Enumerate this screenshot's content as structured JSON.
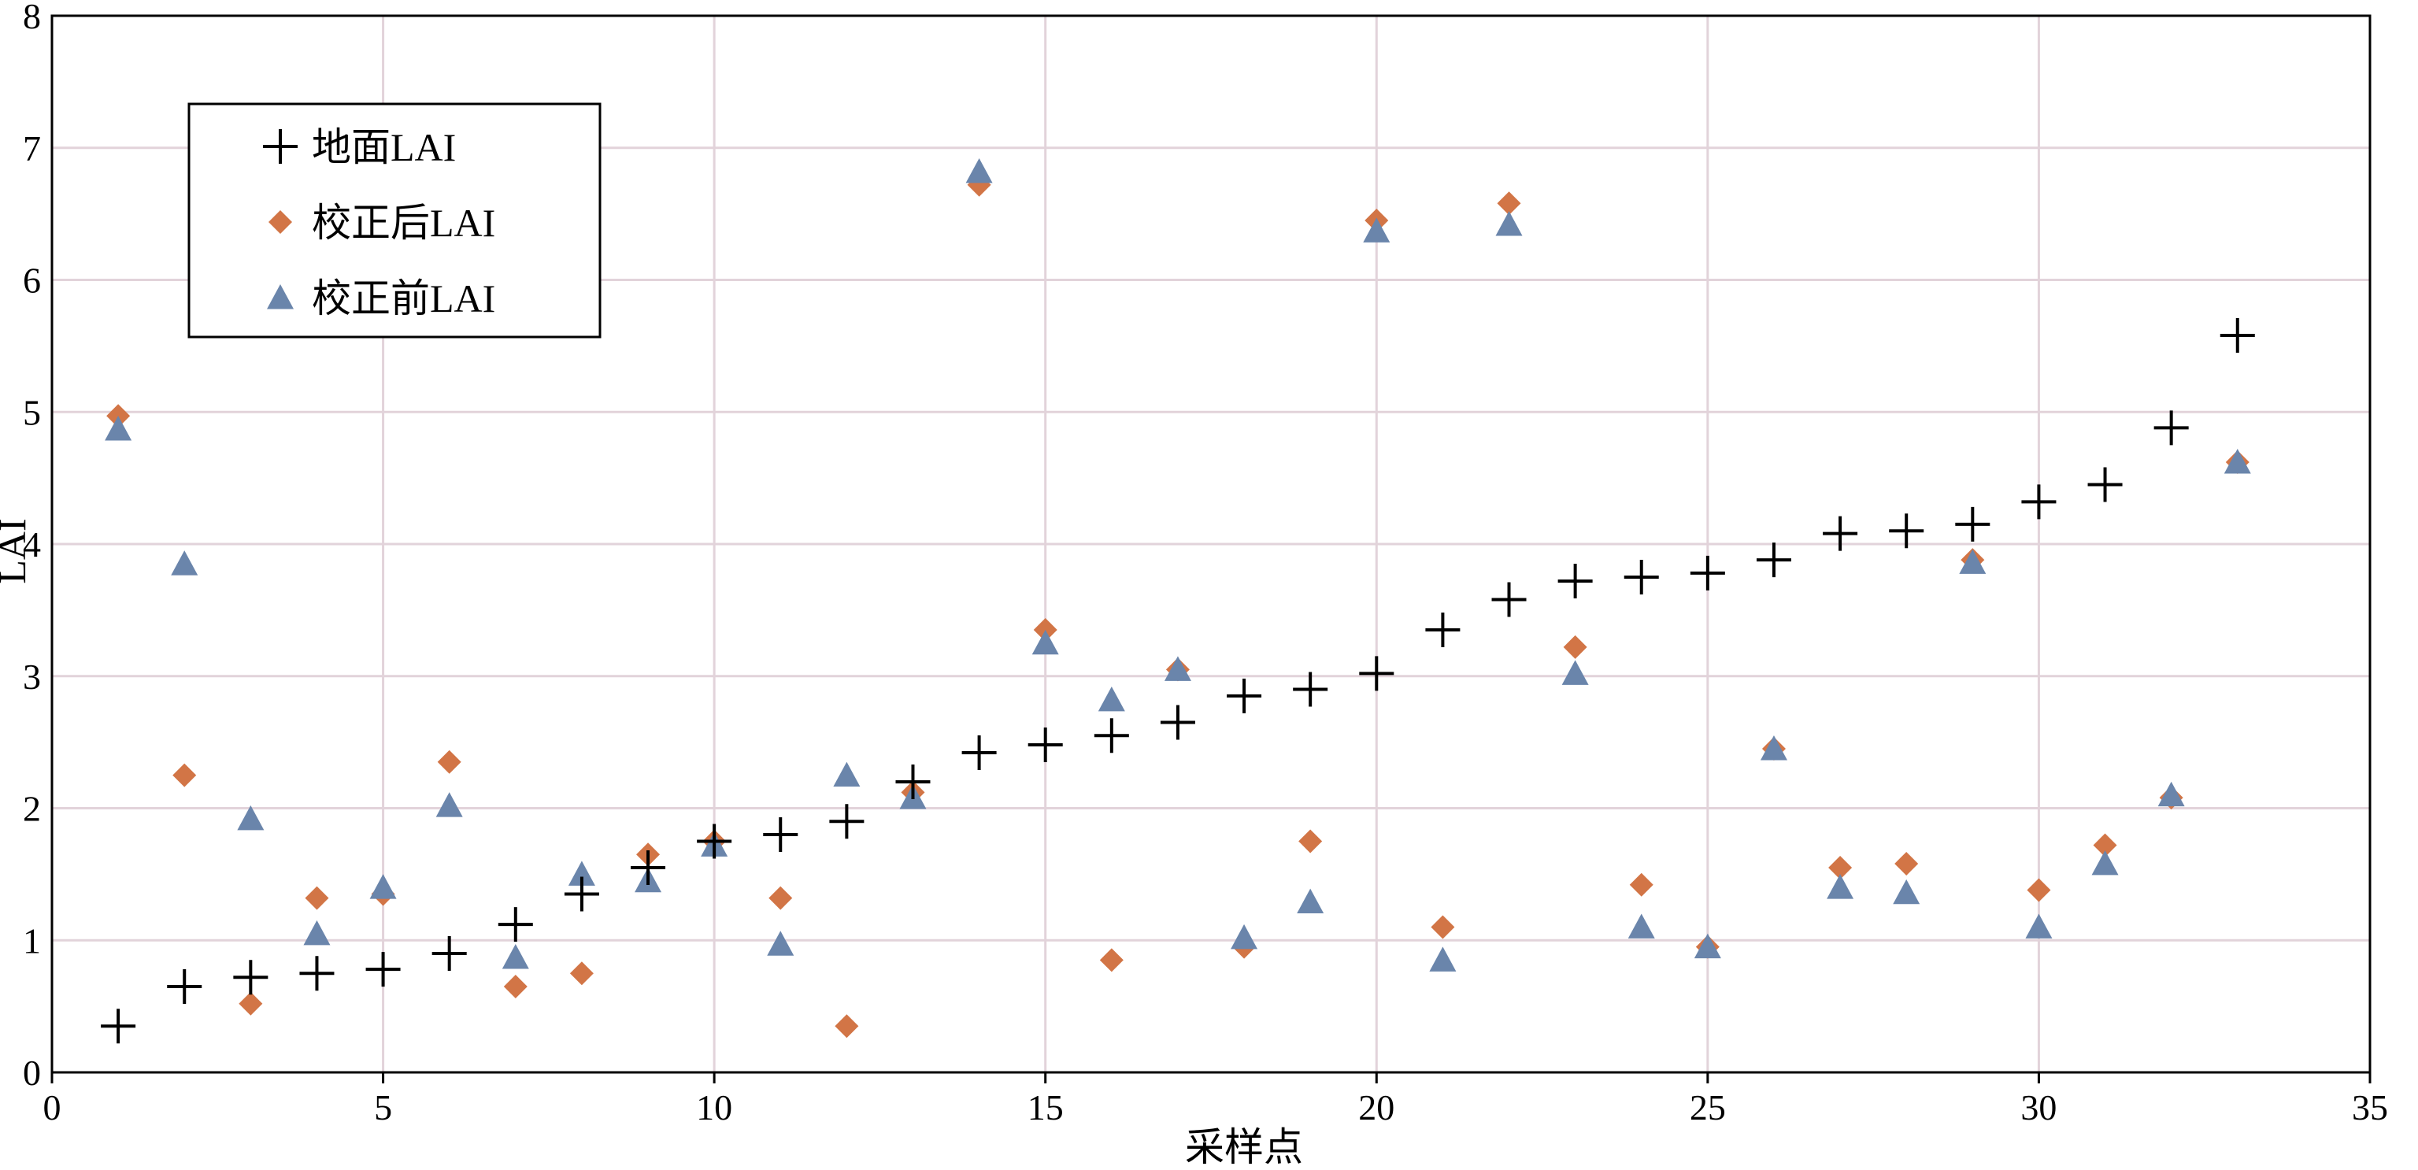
{
  "chart_data": {
    "type": "scatter",
    "xlabel": "采样点",
    "ylabel": "LAI",
    "xlim": [
      0,
      35
    ],
    "ylim": [
      0,
      8
    ],
    "xticks": [
      0,
      5,
      10,
      15,
      20,
      25,
      30,
      35
    ],
    "yticks": [
      0,
      1,
      2,
      3,
      4,
      5,
      6,
      7,
      8
    ],
    "grid": true,
    "legend_position": "top-left",
    "series": [
      {
        "name": "地面LAI",
        "marker": "plus",
        "color": "#000000",
        "x": [
          1,
          2,
          3,
          4,
          5,
          6,
          7,
          8,
          9,
          10,
          11,
          12,
          13,
          14,
          15,
          16,
          17,
          18,
          19,
          20,
          21,
          22,
          23,
          24,
          25,
          26,
          27,
          28,
          29,
          30,
          31,
          32,
          33
        ],
        "values": [
          0.35,
          0.65,
          0.72,
          0.75,
          0.78,
          0.9,
          1.12,
          1.35,
          1.55,
          1.75,
          1.8,
          1.9,
          2.2,
          2.42,
          2.48,
          2.55,
          2.65,
          2.85,
          2.9,
          3.02,
          3.35,
          3.58,
          3.72,
          3.75,
          3.78,
          3.88,
          4.08,
          4.1,
          4.15,
          4.32,
          4.45,
          4.88,
          5.58
        ]
      },
      {
        "name": "校正后LAI",
        "marker": "diamond",
        "color": "#d27546",
        "x": [
          1,
          2,
          3,
          4,
          5,
          6,
          7,
          8,
          9,
          10,
          11,
          12,
          13,
          14,
          15,
          16,
          17,
          18,
          19,
          20,
          21,
          22,
          23,
          24,
          25,
          26,
          27,
          28,
          29,
          30,
          31,
          32,
          33
        ],
        "values": [
          4.97,
          2.25,
          0.52,
          1.32,
          1.35,
          2.35,
          0.65,
          0.75,
          1.65,
          1.75,
          1.32,
          0.35,
          2.12,
          6.72,
          3.35,
          0.85,
          3.05,
          0.95,
          1.75,
          6.45,
          1.1,
          6.58,
          3.22,
          1.42,
          0.95,
          2.45,
          1.55,
          1.58,
          3.88,
          1.38,
          1.72,
          2.08,
          4.62
        ]
      },
      {
        "name": "校正前LAI",
        "marker": "triangle",
        "color": "#6a85ab",
        "x": [
          1,
          2,
          3,
          4,
          5,
          6,
          7,
          8,
          9,
          10,
          11,
          12,
          13,
          14,
          15,
          16,
          17,
          18,
          19,
          20,
          21,
          22,
          23,
          24,
          25,
          26,
          27,
          28,
          29,
          30,
          31,
          32,
          33
        ],
        "values": [
          4.87,
          3.85,
          1.92,
          1.05,
          1.4,
          2.02,
          0.87,
          1.5,
          1.45,
          1.72,
          0.97,
          2.25,
          2.08,
          6.82,
          3.25,
          2.82,
          3.05,
          1.02,
          1.29,
          6.37,
          0.85,
          6.42,
          3.02,
          1.1,
          0.95,
          2.45,
          1.4,
          1.36,
          3.86,
          1.1,
          1.58,
          2.1,
          4.62
        ]
      }
    ]
  }
}
